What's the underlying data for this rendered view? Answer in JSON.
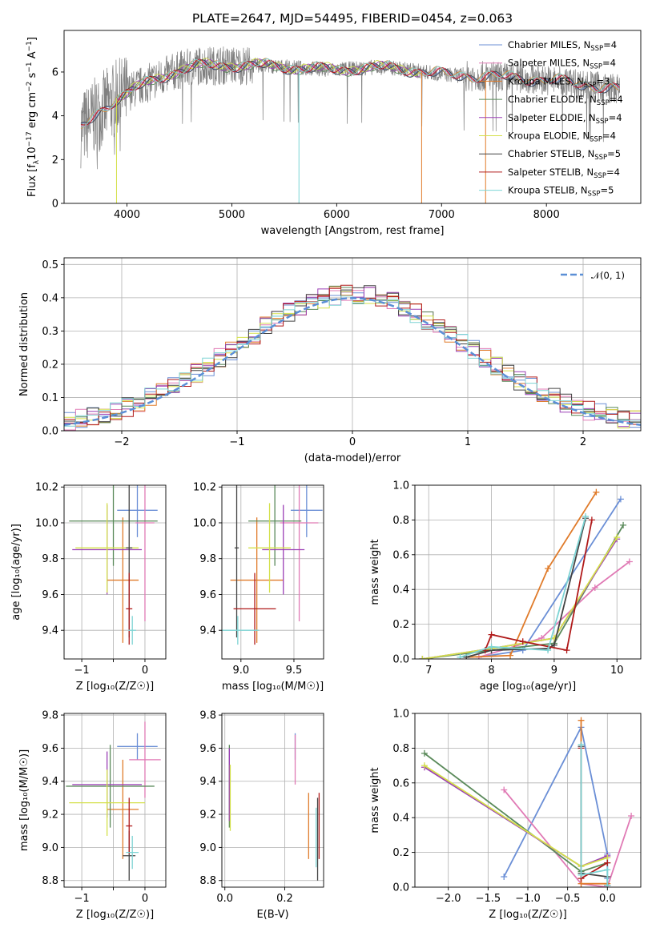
{
  "title": "PLATE=2647, MJD=54495, FIBERID=0454, z=0.063",
  "colors": {
    "chabrier_miles": "#6b8fd6",
    "salpeter_miles": "#e07ab5",
    "kroupa_miles": "#e07b2a",
    "chabrier_elodie": "#5a8a5a",
    "salpeter_elodie": "#9b3fb5",
    "kroupa_elodie": "#d4e04a",
    "chabrier_stelib": "#444444",
    "salpeter_stelib": "#b01a1a",
    "kroupa_stelib": "#7dd4d4",
    "data_spectrum": "#808080",
    "gaussian": "#5b8fd6"
  },
  "chart_data": [
    {
      "id": "spectrum",
      "type": "line",
      "title": "PLATE=2647, MJD=54495, FIBERID=0454, z=0.063",
      "xlabel": "wavelength [Angstrom, rest frame]",
      "ylabel_main": "Flux [f",
      "ylabel_sub": "λ",
      "ylabel_mid": "10",
      "ylabel_sup1": "−17",
      "ylabel_tail": " erg cm",
      "ylabel_sup2": "−2",
      "ylabel_tail2": " s",
      "ylabel_sup3": "−1",
      "ylabel_tail3": " A",
      "ylabel_sup4": "−1",
      "ylabel_end": "]",
      "xlim": [
        3400,
        8900
      ],
      "ylim": [
        0,
        7.9
      ],
      "xticks": [
        4000,
        5000,
        6000,
        7000,
        8000
      ],
      "yticks": [
        0,
        2,
        4,
        6
      ],
      "legend_position": "right",
      "legend": [
        {
          "name": "Chabrier MILES, N",
          "sub": "SSP",
          "tail": "=4"
        },
        {
          "name": "Salpeter MILES, N",
          "sub": "SSP",
          "tail": "=4"
        },
        {
          "name": "Kroupa MILES, N",
          "sub": "SSP",
          "tail": "=3"
        },
        {
          "name": "Chabrier ELODIE, N",
          "sub": "SSP",
          "tail": "=4"
        },
        {
          "name": "Salpeter ELODIE, N",
          "sub": "SSP",
          "tail": "=4"
        },
        {
          "name": "Kroupa ELODIE, N",
          "sub": "SSP",
          "tail": "=4"
        },
        {
          "name": "Chabrier STELIB, N",
          "sub": "SSP",
          "tail": "=5"
        },
        {
          "name": "Salpeter STELIB, N",
          "sub": "SSP",
          "tail": "=4"
        },
        {
          "name": "Kroupa STELIB, N",
          "sub": "SSP",
          "tail": "=5"
        }
      ],
      "continuum": {
        "x": [
          3560,
          3700,
          3900,
          4100,
          4300,
          4500,
          4700,
          5000,
          5300,
          5600,
          6000,
          6300,
          6500,
          6700,
          7000,
          7300,
          7500,
          7800,
          8100,
          8400,
          8700
        ],
        "y": [
          3.4,
          4.0,
          4.8,
          5.3,
          5.7,
          6.1,
          6.3,
          6.3,
          6.3,
          6.2,
          6.1,
          6.2,
          6.2,
          6.1,
          5.9,
          5.8,
          5.8,
          5.7,
          5.6,
          5.4,
          5.2
        ]
      }
    },
    {
      "id": "residuals",
      "type": "step",
      "xlabel": "(data-model)/error",
      "ylabel": "Normed distribution",
      "xlim": [
        -2.5,
        2.5
      ],
      "ylim": [
        0,
        0.52
      ],
      "xticks": [
        -2,
        -1,
        0,
        1,
        2
      ],
      "xtick_labels": [
        "−2",
        "−1",
        "0",
        "1",
        "2"
      ],
      "yticks": [
        0.0,
        0.1,
        0.2,
        0.3,
        0.4,
        0.5
      ],
      "ytick_labels": [
        "0.0",
        "0.1",
        "0.2",
        "0.3",
        "0.4",
        "0.5"
      ],
      "legend_position": "top-right",
      "gaussian_label": "𝒩(0, 1)",
      "bin_width": 0.1,
      "bin_start": -2.5
    },
    {
      "id": "age_vs_Z",
      "type": "errorbar",
      "xlabel": "Z [log₁₀(Z/Z☉)]",
      "ylabel": "age  [log₁₀(age/yr)]",
      "xlim": [
        -1.28,
        0.33
      ],
      "ylim": [
        9.24,
        10.21
      ],
      "xticks": [
        -1,
        -0.5,
        0
      ],
      "xtick_labels": [
        "−1",
        "",
        "0"
      ],
      "yticks": [
        9.4,
        9.6,
        9.8,
        10.0,
        10.2
      ],
      "ytick_labels": [
        "9.4",
        "9.6",
        "9.8",
        "10.0",
        "10.2"
      ],
      "points": [
        {
          "s": "chabrier_miles",
          "x": -0.12,
          "xe": 0.32,
          "y": 10.07,
          "ye": 0.15
        },
        {
          "s": "salpeter_miles",
          "x": 0.0,
          "xe": 0.15,
          "y": 10.0,
          "ye": 0.55
        },
        {
          "s": "kroupa_miles",
          "x": -0.35,
          "xe": 0.25,
          "y": 9.68,
          "ye": 0.35
        },
        {
          "s": "chabrier_elodie",
          "x": -0.5,
          "xe": 0.7,
          "y": 10.01,
          "ye": 0.25
        },
        {
          "s": "salpeter_elodie",
          "x": -0.6,
          "xe": 0.55,
          "y": 9.85,
          "ye": 0.25
        },
        {
          "s": "kroupa_elodie",
          "x": -0.6,
          "xe": 0.5,
          "y": 9.86,
          "ye": 0.25
        },
        {
          "s": "chabrier_stelib",
          "x": -0.25,
          "xe": 0.05,
          "y": 9.86,
          "ye": 0.5
        },
        {
          "s": "salpeter_stelib",
          "x": -0.25,
          "xe": 0.05,
          "y": 9.52,
          "ye": 0.2
        },
        {
          "s": "kroupa_stelib",
          "x": -0.2,
          "xe": 0.06,
          "y": 9.4,
          "ye": 0.08
        }
      ]
    },
    {
      "id": "age_vs_mass",
      "type": "errorbar",
      "xlabel": "mass [log₁₀(M/M☉)]",
      "ylabel": "",
      "xlim": [
        8.82,
        9.78
      ],
      "ylim": [
        9.24,
        10.21
      ],
      "xticks": [
        9.0,
        9.5
      ],
      "xtick_labels": [
        "9.0",
        "9.5"
      ],
      "yticks": [
        9.4,
        9.6,
        9.8,
        10.0,
        10.2
      ],
      "ytick_labels": [
        "9.4",
        "9.6",
        "9.8",
        "10.0",
        "10.2"
      ],
      "points": [
        {
          "s": "chabrier_miles",
          "x": 9.62,
          "xe": 0.15,
          "y": 10.07,
          "ye": 0.15
        },
        {
          "s": "salpeter_miles",
          "x": 9.55,
          "xe": 0.18,
          "y": 10.0,
          "ye": 0.55
        },
        {
          "s": "kroupa_miles",
          "x": 9.15,
          "xe": 0.25,
          "y": 9.68,
          "ye": 0.35
        },
        {
          "s": "chabrier_elodie",
          "x": 9.32,
          "xe": 0.25,
          "y": 10.01,
          "ye": 0.25
        },
        {
          "s": "salpeter_elodie",
          "x": 9.4,
          "xe": 0.2,
          "y": 9.85,
          "ye": 0.25
        },
        {
          "s": "kroupa_elodie",
          "x": 9.27,
          "xe": 0.2,
          "y": 9.86,
          "ye": 0.25
        },
        {
          "s": "chabrier_stelib",
          "x": 8.96,
          "xe": 0.02,
          "y": 9.86,
          "ye": 0.5
        },
        {
          "s": "salpeter_stelib",
          "x": 9.13,
          "xe": 0.2,
          "y": 9.52,
          "ye": 0.2
        },
        {
          "s": "kroupa_stelib",
          "x": 8.97,
          "xe": 0.2,
          "y": 9.4,
          "ye": 0.08
        }
      ]
    },
    {
      "id": "mass_weight_vs_age",
      "type": "line",
      "xlabel": "age  [log₁₀(age/yr)]",
      "ylabel": "mass weight",
      "xlim": [
        6.78,
        10.38
      ],
      "ylim": [
        0,
        1.0
      ],
      "xticks": [
        7,
        8,
        9,
        10
      ],
      "xtick_labels": [
        "7",
        "8",
        "9",
        "10"
      ],
      "yticks": [
        0.0,
        0.2,
        0.4,
        0.6,
        0.8,
        1.0
      ],
      "ytick_labels": [
        "0.0",
        "0.2",
        "0.4",
        "0.6",
        "0.8",
        "1.0"
      ],
      "series": [
        {
          "s": "chabrier_miles",
          "x": [
            7.8,
            8.5,
            10.06
          ],
          "y": [
            0.01,
            0.05,
            0.92
          ],
          "err": [
            10.06,
            0.06,
            0.92
          ]
        },
        {
          "s": "salpeter_miles",
          "x": [
            7.8,
            8.8,
            9.65,
            10.2
          ],
          "y": [
            0.01,
            0.12,
            0.41,
            0.56
          ]
        },
        {
          "s": "kroupa_miles",
          "x": [
            7.6,
            8.3,
            8.9,
            9.67
          ],
          "y": [
            0.01,
            0.02,
            0.52,
            0.96
          ]
        },
        {
          "s": "chabrier_elodie",
          "x": [
            6.9,
            8.0,
            9.0,
            10.1
          ],
          "y": [
            0.0,
            0.05,
            0.09,
            0.77
          ]
        },
        {
          "s": "salpeter_elodie",
          "x": [
            6.9,
            8.0,
            9.0,
            10.0
          ],
          "y": [
            0.0,
            0.06,
            0.12,
            0.69
          ]
        },
        {
          "s": "kroupa_elodie",
          "x": [
            6.9,
            8.0,
            9.0,
            10.0
          ],
          "y": [
            0.0,
            0.06,
            0.12,
            0.7
          ]
        },
        {
          "s": "chabrier_stelib",
          "x": [
            7.6,
            8.0,
            8.9,
            9.0,
            9.5
          ],
          "y": [
            0.01,
            0.05,
            0.06,
            0.08,
            0.81
          ]
        },
        {
          "s": "salpeter_stelib",
          "x": [
            7.9,
            8.0,
            8.5,
            9.2,
            9.6
          ],
          "y": [
            0.05,
            0.14,
            0.1,
            0.05,
            0.8
          ]
        },
        {
          "s": "kroupa_stelib",
          "x": [
            7.5,
            8.0,
            8.9,
            9.5
          ],
          "y": [
            0.01,
            0.07,
            0.05,
            0.82
          ]
        }
      ]
    },
    {
      "id": "mass_vs_Z",
      "type": "errorbar",
      "xlabel": "Z [log₁₀(Z/Z☉)]",
      "ylabel": "mass [log₁₀(M/M☉)]",
      "xlim": [
        -1.28,
        0.33
      ],
      "ylim": [
        8.76,
        9.81
      ],
      "xticks": [
        -1,
        -0.5,
        0
      ],
      "xtick_labels": [
        "−1",
        "",
        "0"
      ],
      "yticks": [
        8.8,
        9.0,
        9.2,
        9.4,
        9.6,
        9.8
      ],
      "ytick_labels": [
        "8.8",
        "9.0",
        "9.2",
        "9.4",
        "9.6",
        "9.8"
      ],
      "points": [
        {
          "s": "chabrier_miles",
          "x": -0.12,
          "xe": 0.32,
          "y": 9.61,
          "ye": 0.08
        },
        {
          "s": "salpeter_miles",
          "x": 0.0,
          "xe": 0.25,
          "y": 9.53,
          "ye": 0.23
        },
        {
          "s": "kroupa_miles",
          "x": -0.35,
          "xe": 0.25,
          "y": 9.23,
          "ye": 0.3
        },
        {
          "s": "chabrier_elodie",
          "x": -0.55,
          "xe": 0.7,
          "y": 9.37,
          "ye": 0.25
        },
        {
          "s": "salpeter_elodie",
          "x": -0.6,
          "xe": 0.55,
          "y": 9.38,
          "ye": 0.2
        },
        {
          "s": "kroupa_elodie",
          "x": -0.6,
          "xe": 0.6,
          "y": 9.27,
          "ye": 0.2
        },
        {
          "s": "chabrier_stelib",
          "x": -0.25,
          "xe": 0.1,
          "y": 8.95,
          "ye": 0.15
        },
        {
          "s": "salpeter_stelib",
          "x": -0.25,
          "xe": 0.05,
          "y": 9.13,
          "ye": 0.17
        },
        {
          "s": "kroupa_stelib",
          "x": -0.2,
          "xe": 0.1,
          "y": 8.97,
          "ye": 0.1
        }
      ]
    },
    {
      "id": "mass_vs_ebv",
      "type": "errorbar",
      "xlabel": "E(B-V)",
      "ylabel": "",
      "xlim": [
        -0.01,
        0.33
      ],
      "ylim": [
        8.76,
        9.81
      ],
      "xticks": [
        0.0,
        0.2
      ],
      "xtick_labels": [
        "0.0",
        "0.2"
      ],
      "yticks": [
        8.8,
        9.0,
        9.2,
        9.4,
        9.6,
        9.8
      ],
      "ytick_labels": [
        "8.8",
        "9.0",
        "9.2",
        "9.4",
        "9.6",
        "9.8"
      ],
      "points": [
        {
          "s": "chabrier_miles",
          "x": 0.235,
          "xe": 0,
          "y": 9.61,
          "ye": 0.08
        },
        {
          "s": "salpeter_miles",
          "x": 0.235,
          "xe": 0,
          "y": 9.53,
          "ye": 0.15
        },
        {
          "s": "kroupa_miles",
          "x": 0.28,
          "xe": 0,
          "y": 9.13,
          "ye": 0.2
        },
        {
          "s": "chabrier_elodie",
          "x": 0.015,
          "xe": 0,
          "y": 9.37,
          "ye": 0.25
        },
        {
          "s": "salpeter_elodie",
          "x": 0.015,
          "xe": 0,
          "y": 9.38,
          "ye": 0.22
        },
        {
          "s": "kroupa_elodie",
          "x": 0.018,
          "xe": 0,
          "y": 9.3,
          "ye": 0.2
        },
        {
          "s": "chabrier_stelib",
          "x": 0.31,
          "xe": 0,
          "y": 9.05,
          "ye": 0.25
        },
        {
          "s": "salpeter_stelib",
          "x": 0.315,
          "xe": 0,
          "y": 9.13,
          "ye": 0.2
        },
        {
          "s": "kroupa_stelib",
          "x": 0.305,
          "xe": 0,
          "y": 9.06,
          "ye": 0.18
        }
      ]
    },
    {
      "id": "mass_weight_vs_Z",
      "type": "line",
      "xlabel": "Z [log₁₀(Z/Z☉)]",
      "ylabel": "mass weight",
      "xlim": [
        -2.42,
        0.42
      ],
      "ylim": [
        0,
        1.0
      ],
      "xticks": [
        -2.0,
        -1.5,
        -1.0,
        -0.5,
        0.0
      ],
      "xtick_labels": [
        "−2.0",
        "−1.5",
        "−1.0",
        "−0.5",
        "0.0"
      ],
      "yticks": [
        0.0,
        0.2,
        0.4,
        0.6,
        0.8,
        1.0
      ],
      "ytick_labels": [
        "0.0",
        "0.2",
        "0.4",
        "0.6",
        "0.8",
        "1.0"
      ],
      "series": [
        {
          "s": "chabrier_miles",
          "x": [
            -1.3,
            -0.33,
            0.0,
            0.0
          ],
          "y": [
            0.06,
            0.92,
            0.19,
            0.05
          ]
        },
        {
          "s": "salpeter_miles",
          "x": [
            -1.3,
            -0.33,
            0.0,
            0.3
          ],
          "y": [
            0.56,
            0.02,
            0.0,
            0.41
          ]
        },
        {
          "s": "kroupa_miles",
          "x": [
            -0.33,
            -0.33,
            0.0
          ],
          "y": [
            0.96,
            0.02,
            0.02
          ]
        },
        {
          "s": "chabrier_elodie",
          "x": [
            -2.3,
            -0.33,
            0.0
          ],
          "y": [
            0.77,
            0.09,
            0.14
          ]
        },
        {
          "s": "salpeter_elodie",
          "x": [
            -2.3,
            -0.33,
            0.0
          ],
          "y": [
            0.69,
            0.12,
            0.18
          ]
        },
        {
          "s": "kroupa_elodie",
          "x": [
            -2.3,
            -0.33,
            0.0
          ],
          "y": [
            0.7,
            0.12,
            0.17
          ]
        },
        {
          "s": "chabrier_stelib",
          "x": [
            -0.33,
            -0.33,
            0.0,
            0.0
          ],
          "y": [
            0.81,
            0.08,
            0.06,
            0.01
          ]
        },
        {
          "s": "salpeter_stelib",
          "x": [
            -0.33,
            -0.33,
            0.0
          ],
          "y": [
            0.8,
            0.05,
            0.14
          ]
        },
        {
          "s": "kroupa_stelib",
          "x": [
            -0.33,
            -0.33,
            0.0,
            0.0
          ],
          "y": [
            0.82,
            0.07,
            0.1,
            0.01
          ]
        }
      ]
    }
  ]
}
